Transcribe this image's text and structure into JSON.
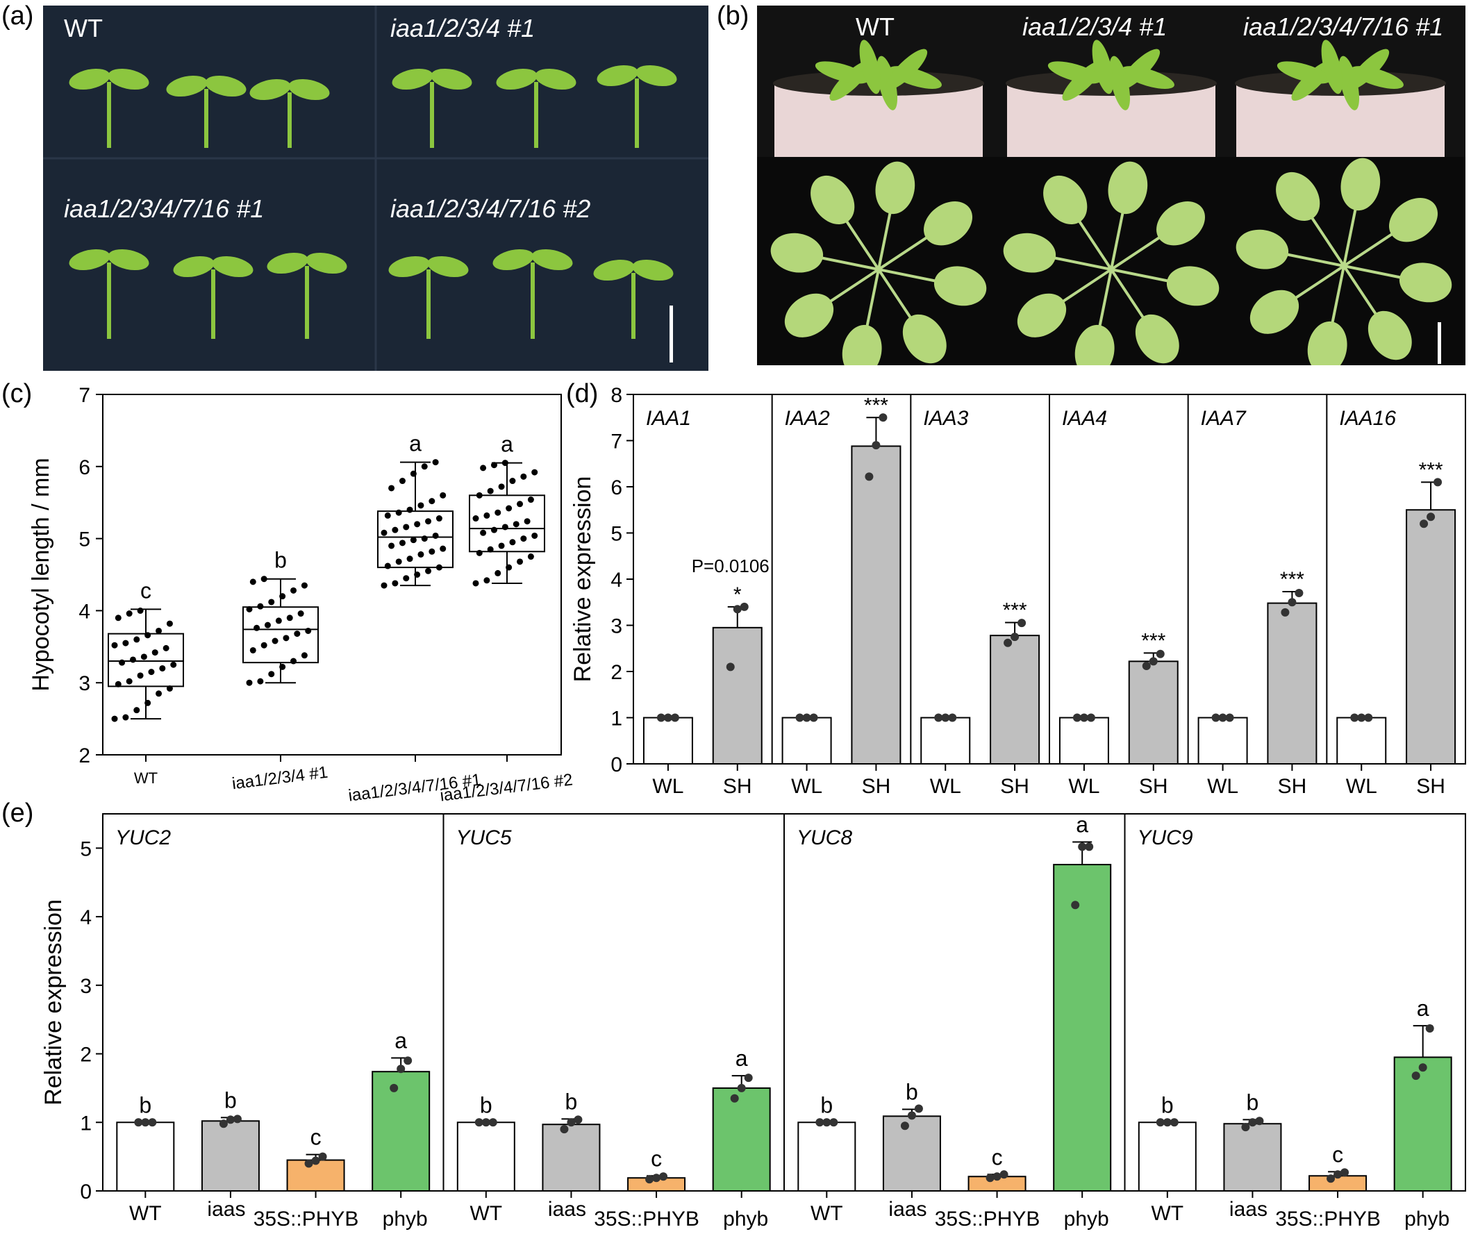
{
  "panels": {
    "a": {
      "label": "(a)",
      "genotypes": [
        "WT",
        "iaa1/2/3/4 #1",
        "iaa1/2/3/4/7/16 #1",
        "iaa1/2/3/4/7/16 #2"
      ]
    },
    "b": {
      "label": "(b)",
      "genotypes": [
        "WT",
        "iaa1/2/3/4 #1",
        "iaa1/2/3/4/7/16 #1"
      ]
    },
    "c": {
      "label": "(c)"
    },
    "d": {
      "label": "(d)"
    },
    "e": {
      "label": "(e)"
    }
  },
  "colors": {
    "photo_bg_a": "#1b2635",
    "photo_bg_b": "#0a0a0a",
    "seedling": "#8cc63f",
    "white_bar": "#ffffff",
    "gray_bar": "#bfbfbf",
    "orange_bar": "#f6b26b",
    "green_bar": "#6cc46c",
    "dot": "#333333"
  },
  "chart_data": [
    {
      "id": "c",
      "type": "box",
      "ylabel": "Hypocotyl length / mm",
      "ylim": [
        2,
        7
      ],
      "yticks": [
        "2",
        "3",
        "4",
        "5",
        "6",
        "7"
      ],
      "categories": [
        "WT",
        "iaa1/2/3/4 #1",
        "iaa1/2/3/4/7/16 #1",
        "iaa1/2/3/4/7/16 #2"
      ],
      "boxes": [
        {
          "min": 2.5,
          "q1": 2.95,
          "median": 3.3,
          "q3": 3.68,
          "max": 4.02,
          "letter": "c",
          "points": [
            2.5,
            2.52,
            2.62,
            2.72,
            2.85,
            2.92,
            2.98,
            3.02,
            3.1,
            3.15,
            3.2,
            3.25,
            3.28,
            3.32,
            3.36,
            3.42,
            3.48,
            3.52,
            3.55,
            3.6,
            3.66,
            3.72,
            3.82,
            3.9,
            3.96,
            4.0
          ]
        },
        {
          "min": 3.0,
          "q1": 3.28,
          "median": 3.74,
          "q3": 4.05,
          "max": 4.44,
          "letter": "b",
          "points": [
            3.0,
            3.02,
            3.12,
            3.22,
            3.3,
            3.38,
            3.45,
            3.52,
            3.58,
            3.62,
            3.68,
            3.72,
            3.76,
            3.8,
            3.86,
            3.9,
            3.96,
            4.02,
            4.06,
            4.12,
            4.2,
            4.28,
            4.35,
            4.4,
            4.44
          ]
        },
        {
          "min": 4.35,
          "q1": 4.6,
          "median": 5.02,
          "q3": 5.38,
          "max": 6.06,
          "letter": "a",
          "points": [
            4.35,
            4.38,
            4.45,
            4.5,
            4.55,
            4.6,
            4.62,
            4.68,
            4.72,
            4.78,
            4.82,
            4.86,
            4.9,
            4.94,
            4.98,
            5.0,
            5.04,
            5.08,
            5.12,
            5.16,
            5.2,
            5.24,
            5.28,
            5.32,
            5.36,
            5.4,
            5.46,
            5.52,
            5.6,
            5.7,
            5.8,
            5.9,
            6.0,
            6.06
          ]
        },
        {
          "min": 4.38,
          "q1": 4.82,
          "median": 5.14,
          "q3": 5.6,
          "max": 6.05,
          "letter": "a",
          "points": [
            4.38,
            4.42,
            4.52,
            4.6,
            4.68,
            4.75,
            4.8,
            4.85,
            4.9,
            4.95,
            5.0,
            5.04,
            5.08,
            5.12,
            5.16,
            5.2,
            5.24,
            5.28,
            5.32,
            5.36,
            5.42,
            5.48,
            5.54,
            5.6,
            5.66,
            5.72,
            5.8,
            5.86,
            5.92,
            5.98,
            6.02,
            6.05
          ]
        }
      ]
    },
    {
      "id": "d",
      "type": "bar",
      "ylabel": "Relative expression",
      "ylim": [
        0,
        8
      ],
      "yticks": [
        "0",
        "1",
        "2",
        "3",
        "4",
        "5",
        "6",
        "7",
        "8"
      ],
      "categories": [
        "WL",
        "SH"
      ],
      "panels": [
        {
          "gene": "IAA1",
          "values": [
            1.0,
            2.95
          ],
          "errors": [
            0.0,
            0.45
          ],
          "points": [
            [
              1.0,
              1.0,
              1.0
            ],
            [
              2.1,
              3.35,
              3.4
            ]
          ],
          "marks": [
            "",
            "*"
          ],
          "pvalue": "P=0.0106"
        },
        {
          "gene": "IAA2",
          "values": [
            1.0,
            6.88
          ],
          "errors": [
            0.0,
            0.62
          ],
          "points": [
            [
              1.0,
              1.0,
              1.0
            ],
            [
              6.22,
              6.9,
              7.5
            ]
          ],
          "marks": [
            "",
            "***"
          ],
          "pvalue": ""
        },
        {
          "gene": "IAA3",
          "values": [
            1.0,
            2.78
          ],
          "errors": [
            0.0,
            0.28
          ],
          "points": [
            [
              1.0,
              1.0,
              1.0
            ],
            [
              2.62,
              2.75,
              3.05
            ]
          ],
          "marks": [
            "",
            "***"
          ],
          "pvalue": ""
        },
        {
          "gene": "IAA4",
          "values": [
            1.0,
            2.22
          ],
          "errors": [
            0.0,
            0.18
          ],
          "points": [
            [
              1.0,
              1.0,
              1.0
            ],
            [
              2.12,
              2.22,
              2.38
            ]
          ],
          "marks": [
            "",
            "***"
          ],
          "pvalue": ""
        },
        {
          "gene": "IAA7",
          "values": [
            1.0,
            3.48
          ],
          "errors": [
            0.0,
            0.25
          ],
          "points": [
            [
              1.0,
              1.0,
              1.0
            ],
            [
              3.28,
              3.5,
              3.7
            ]
          ],
          "marks": [
            "",
            "***"
          ],
          "pvalue": ""
        },
        {
          "gene": "IAA16",
          "values": [
            1.0,
            5.5
          ],
          "errors": [
            0.0,
            0.6
          ],
          "points": [
            [
              1.0,
              1.0,
              1.0
            ],
            [
              5.2,
              5.35,
              6.1
            ]
          ],
          "marks": [
            "",
            "***"
          ],
          "pvalue": ""
        }
      ]
    },
    {
      "id": "e",
      "type": "bar",
      "ylabel": "Relative expression",
      "ylim": [
        0,
        5.5
      ],
      "yticks": [
        "0",
        "1",
        "2",
        "3",
        "4",
        "5"
      ],
      "categories": [
        "WT",
        "iaas",
        "35S::PHYB",
        "phyb"
      ],
      "panels": [
        {
          "gene": "YUC2",
          "values": [
            1.0,
            1.02,
            0.45,
            1.74
          ],
          "errors": [
            0.0,
            0.05,
            0.08,
            0.2
          ],
          "points": [
            [
              1.0,
              1.0,
              1.0
            ],
            [
              0.98,
              1.04,
              1.05
            ],
            [
              0.4,
              0.44,
              0.5
            ],
            [
              1.5,
              1.78,
              1.9
            ]
          ],
          "letters": [
            "b",
            "b",
            "c",
            "a"
          ]
        },
        {
          "gene": "YUC5",
          "values": [
            1.0,
            0.97,
            0.19,
            1.5
          ],
          "errors": [
            0.0,
            0.08,
            0.03,
            0.18
          ],
          "points": [
            [
              1.0,
              1.0,
              1.0
            ],
            [
              0.9,
              1.0,
              1.04
            ],
            [
              0.17,
              0.19,
              0.21
            ],
            [
              1.35,
              1.5,
              1.65
            ]
          ],
          "letters": [
            "b",
            "b",
            "c",
            "a"
          ]
        },
        {
          "gene": "YUC8",
          "values": [
            1.0,
            1.09,
            0.21,
            4.76
          ],
          "errors": [
            0.0,
            0.1,
            0.03,
            0.33
          ],
          "points": [
            [
              1.0,
              1.0,
              1.0
            ],
            [
              0.95,
              1.1,
              1.2
            ],
            [
              0.19,
              0.21,
              0.24
            ],
            [
              4.17,
              5.02,
              5.02
            ]
          ],
          "letters": [
            "b",
            "b",
            "c",
            "a"
          ]
        },
        {
          "gene": "YUC9",
          "values": [
            1.0,
            0.98,
            0.22,
            1.95
          ],
          "errors": [
            0.0,
            0.06,
            0.06,
            0.46
          ],
          "points": [
            [
              1.0,
              1.0,
              1.0
            ],
            [
              0.93,
              1.0,
              1.02
            ],
            [
              0.18,
              0.24,
              0.27
            ],
            [
              1.68,
              1.8,
              2.37
            ]
          ],
          "letters": [
            "b",
            "b",
            "c",
            "a"
          ]
        }
      ]
    }
  ]
}
